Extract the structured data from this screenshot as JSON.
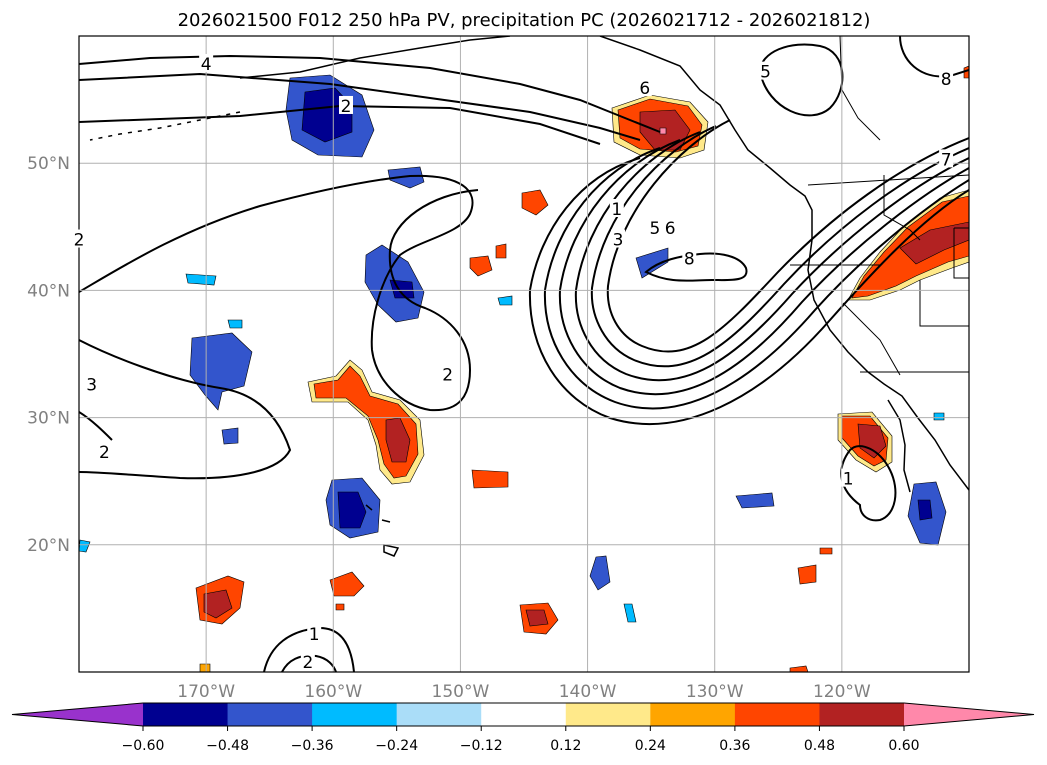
{
  "chart_data": {
    "type": "map-contour",
    "title": "2026021500 F012 250 hPa PV, precipitation PC (2026021712 - 2026021812)",
    "lon_range": [
      -180,
      -110
    ],
    "lat_range": [
      10,
      60
    ],
    "lon_ticks": [
      -170,
      -160,
      -150,
      -140,
      -130,
      -120
    ],
    "lon_tick_labels": [
      "170°W",
      "160°W",
      "150°W",
      "140°W",
      "130°W",
      "120°W"
    ],
    "lat_ticks": [
      20,
      30,
      40,
      50
    ],
    "lat_tick_labels": [
      "20°N",
      "30°N",
      "40°N",
      "50°N"
    ],
    "grid": true,
    "pv_contour_labels": [
      {
        "text": "4",
        "lon": -170,
        "lat": 57.8
      },
      {
        "text": "2",
        "lon": -159,
        "lat": 54.5
      },
      {
        "text": "2",
        "lon": -180,
        "lat": 44
      },
      {
        "text": "6",
        "lon": -135.5,
        "lat": 55.9
      },
      {
        "text": "5",
        "lon": -126,
        "lat": 57.2
      },
      {
        "text": "8",
        "lon": -111.8,
        "lat": 56.6
      },
      {
        "text": "7",
        "lon": -111.8,
        "lat": 50.3
      },
      {
        "text": "1",
        "lon": -137.7,
        "lat": 46.4
      },
      {
        "text": "3",
        "lon": -137.6,
        "lat": 44
      },
      {
        "text": "5",
        "lon": -134.7,
        "lat": 44.9
      },
      {
        "text": "6",
        "lon": -133.5,
        "lat": 44.9
      },
      {
        "text": "8",
        "lon": -132,
        "lat": 42.5
      },
      {
        "text": "2",
        "lon": -151,
        "lat": 33.4
      },
      {
        "text": "3",
        "lon": -179,
        "lat": 32.6
      },
      {
        "text": "2",
        "lon": -178,
        "lat": 27.3
      },
      {
        "text": "1",
        "lon": -119.5,
        "lat": 25.2
      },
      {
        "text": "1",
        "lon": -161.5,
        "lat": 13
      },
      {
        "text": "2",
        "lon": -162,
        "lat": 10.8
      }
    ],
    "colorbar": {
      "boundaries": [
        -0.6,
        -0.48,
        -0.36,
        -0.24,
        -0.12,
        0.12,
        0.24,
        0.36,
        0.48,
        0.6
      ],
      "tick_labels": [
        "−0.60",
        "−0.48",
        "−0.36",
        "−0.24",
        "−0.12",
        "0.12",
        "0.24",
        "0.36",
        "0.48",
        "0.60"
      ],
      "under_color": "#9932cc",
      "over_color": "#ff88aa",
      "colors": [
        "#000090",
        "#3355cc",
        "#00bbff",
        "#aaddf8",
        "#ffffff",
        "#ffe98a",
        "#ffa500",
        "#ff4500",
        "#b22222"
      ],
      "extend": "both"
    },
    "precip_colors": {
      "neg_deep": "#000090",
      "neg_mid": "#3355cc",
      "neg_light": "#00bbff",
      "pos_light": "#ffe98a",
      "pos_mid": "#ffa500",
      "pos_strong": "#ff4500",
      "pos_deep": "#b22222",
      "pos_max": "#ff88aa",
      "neg_max": "#9932cc"
    }
  }
}
